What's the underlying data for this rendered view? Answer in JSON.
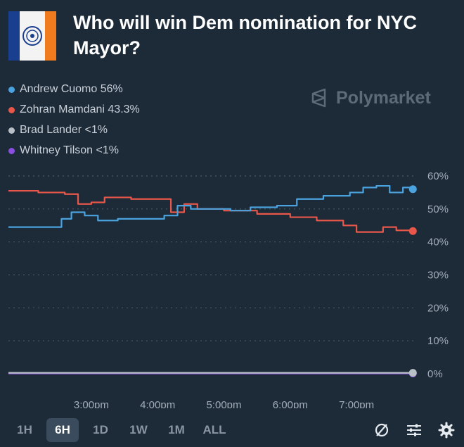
{
  "header": {
    "title": "Who will win Dem nomination for NYC Mayor?",
    "brand": "Polymarket"
  },
  "legend": [
    {
      "label": "Andrew Cuomo 56%",
      "color": "#4aa3df"
    },
    {
      "label": "Zohran Mamdani 43.3%",
      "color": "#e8574a"
    },
    {
      "label": "Brad Lander <1%",
      "color": "#b9c0c7"
    },
    {
      "label": "Whitney Tilson <1%",
      "color": "#8a4fe0"
    }
  ],
  "controls": {
    "ranges": [
      "1H",
      "6H",
      "1D",
      "1W",
      "1M",
      "ALL"
    ],
    "active_range": "6H",
    "tool_icons": [
      "diff-icon",
      "sliders-icon",
      "gear-icon"
    ]
  },
  "chart_data": {
    "type": "line",
    "title": "",
    "xlabel": "",
    "ylabel": "",
    "x_ticks": [
      "3:00pm",
      "4:00pm",
      "5:00pm",
      "6:00pm",
      "7:00pm"
    ],
    "y_ticks": [
      "0%",
      "10%",
      "20%",
      "30%",
      "40%",
      "50%",
      "60%"
    ],
    "ylim": [
      0,
      60
    ],
    "xlim": [
      1.75,
      7.9
    ],
    "y_axis_side": "right",
    "grid": "dotted-horizontal",
    "series": [
      {
        "name": "Andrew Cuomo",
        "color": "#4aa3df",
        "x": [
          1.75,
          2.45,
          2.55,
          2.7,
          2.9,
          3.1,
          3.4,
          3.8,
          4.1,
          4.3,
          4.5,
          4.9,
          5.1,
          5.4,
          5.8,
          6.1,
          6.5,
          6.9,
          7.1,
          7.3,
          7.5,
          7.7,
          7.85
        ],
        "values": [
          44.5,
          44.5,
          47,
          49,
          48,
          46.5,
          47,
          47,
          48,
          51,
          50,
          50,
          49.5,
          50.5,
          51,
          53,
          54,
          55,
          56.5,
          57,
          55,
          56.5,
          56
        ]
      },
      {
        "name": "Zohran Mamdani",
        "color": "#e8574a",
        "x": [
          1.75,
          2.2,
          2.6,
          2.8,
          3.0,
          3.2,
          3.6,
          4.0,
          4.2,
          4.4,
          4.6,
          5.0,
          5.5,
          6.0,
          6.4,
          6.8,
          7.0,
          7.2,
          7.4,
          7.6,
          7.85
        ],
        "values": [
          55.5,
          55,
          54.5,
          51.5,
          52,
          53.5,
          53,
          53,
          49,
          51.5,
          50,
          49.5,
          48.5,
          47.5,
          46.5,
          45,
          43,
          43,
          44.5,
          43.5,
          43.3
        ]
      },
      {
        "name": "Brad Lander",
        "color": "#b9c0c7",
        "x": [
          1.75,
          7.85
        ],
        "values": [
          0.3,
          0.3
        ]
      },
      {
        "name": "Whitney Tilson",
        "color": "#8a4fe0",
        "x": [
          1.75,
          7.85
        ],
        "values": [
          0.1,
          0.1
        ]
      }
    ]
  }
}
